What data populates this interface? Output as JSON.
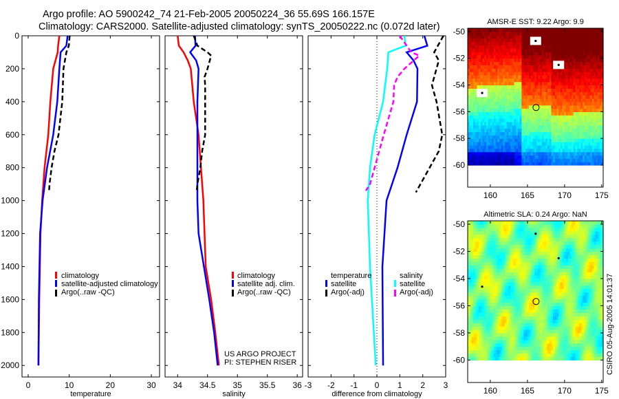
{
  "header": {
    "title_line1": "Argo profile: AO 5900242_74 21-Feb-2005 20050224_36 55.69S 166.157E",
    "title_line2": "Climatology: CARS2000. Satellite-adjusted climatology: synTS_20050222.nc (0.072d later)"
  },
  "colors": {
    "climatology": "#ff0000",
    "satellite": "#0000ff",
    "argo": "#000000",
    "salinity_satellite": "#00ffff",
    "salinity_argo": "#ff00ff"
  },
  "credit": {
    "line1": "US ARGO PROJECT",
    "line2": "PI: STEPHEN RISER"
  },
  "footer_stamp": "CSIRO 05-Aug-2005 14:01:37",
  "chart_data": [
    {
      "type": "line",
      "id": "temperature",
      "xlabel": "temperature",
      "ylabel": "",
      "xlim": [
        -1.5,
        32
      ],
      "ylim": [
        0,
        2070
      ],
      "y_reversed": true,
      "xticks": [
        0,
        10,
        20,
        30
      ],
      "yticks": [
        0,
        200,
        400,
        600,
        800,
        1000,
        1200,
        1400,
        1600,
        1800,
        2000
      ],
      "legend": [
        "climatology",
        "satellite-adjusted climatology",
        "Argo(..raw -QC)"
      ],
      "series": [
        {
          "name": "climatology",
          "color": "#ff0000",
          "dash": false,
          "points": [
            [
              0,
              7.6
            ],
            [
              60,
              7.3
            ],
            [
              100,
              7.2
            ],
            [
              200,
              6.1
            ],
            [
              400,
              5.4
            ],
            [
              600,
              4.9
            ],
            [
              800,
              4.0
            ],
            [
              1000,
              3.4
            ],
            [
              1200,
              3.0
            ],
            [
              1600,
              2.7
            ],
            [
              2000,
              2.5
            ]
          ]
        },
        {
          "name": "satellite-adjusted climatology",
          "color": "#0000ff",
          "dash": false,
          "points": [
            [
              0,
              9.6
            ],
            [
              60,
              9.3
            ],
            [
              100,
              7.9
            ],
            [
              200,
              7.6
            ],
            [
              400,
              7.1
            ],
            [
              600,
              6.1
            ],
            [
              800,
              4.6
            ],
            [
              1000,
              3.5
            ],
            [
              1200,
              2.9
            ],
            [
              1600,
              2.6
            ],
            [
              2000,
              2.5
            ]
          ]
        },
        {
          "name": "Argo(..raw -QC)",
          "color": "#000000",
          "dash": true,
          "points": [
            [
              0,
              10.1
            ],
            [
              60,
              9.9
            ],
            [
              100,
              9.3
            ],
            [
              200,
              8.6
            ],
            [
              400,
              8.3
            ],
            [
              600,
              7.4
            ],
            [
              700,
              6.4
            ],
            [
              800,
              5.7
            ],
            [
              900,
              5.2
            ],
            [
              940,
              5.1
            ]
          ]
        }
      ]
    },
    {
      "type": "line",
      "id": "salinity",
      "xlabel": "salinity",
      "xlim": [
        33.79,
        36.09
      ],
      "ylim": [
        0,
        2070
      ],
      "y_reversed": true,
      "xticks": [
        34,
        34.5,
        35,
        35.5,
        36
      ],
      "legend": [
        "climatology",
        "satellite adj. clim.",
        "Argo(..raw -QC)"
      ],
      "series": [
        {
          "name": "climatology",
          "color": "#ff0000",
          "dash": false,
          "points": [
            [
              0,
              34.0
            ],
            [
              60,
              34.02
            ],
            [
              100,
              34.1
            ],
            [
              150,
              34.17
            ],
            [
              200,
              34.22
            ],
            [
              400,
              34.27
            ],
            [
              600,
              34.35
            ],
            [
              800,
              34.39
            ],
            [
              1000,
              34.43
            ],
            [
              1200,
              34.45
            ],
            [
              1400,
              34.47
            ],
            [
              1600,
              34.56
            ],
            [
              1800,
              34.63
            ],
            [
              2000,
              34.69
            ]
          ]
        },
        {
          "name": "satellite adj. clim.",
          "color": "#0000ff",
          "dash": false,
          "points": [
            [
              0,
              34.29
            ],
            [
              60,
              34.3
            ],
            [
              100,
              34.21
            ],
            [
              150,
              34.31
            ],
            [
              200,
              34.35
            ],
            [
              400,
              34.33
            ],
            [
              600,
              34.33
            ],
            [
              800,
              34.33
            ],
            [
              1000,
              34.33
            ],
            [
              1200,
              34.35
            ],
            [
              1400,
              34.44
            ],
            [
              1600,
              34.53
            ],
            [
              1800,
              34.61
            ],
            [
              2000,
              34.67
            ]
          ]
        },
        {
          "name": "Argo(..raw -QC)",
          "color": "#000000",
          "dash": true,
          "points": [
            [
              0,
              34.27
            ],
            [
              60,
              34.33
            ],
            [
              100,
              34.5
            ],
            [
              120,
              34.56
            ],
            [
              200,
              34.5
            ],
            [
              250,
              34.45
            ],
            [
              300,
              34.46
            ],
            [
              400,
              34.46
            ],
            [
              600,
              34.46
            ],
            [
              700,
              34.41
            ],
            [
              800,
              34.38
            ],
            [
              900,
              34.33
            ],
            [
              940,
              34.32
            ]
          ]
        }
      ]
    },
    {
      "type": "line",
      "id": "difference",
      "xlabel": "difference from climatology",
      "xlim": [
        -3,
        3
      ],
      "ylim": [
        0,
        2070
      ],
      "y_reversed": true,
      "xticks": [
        -3,
        -2,
        -1,
        0,
        1,
        2,
        3
      ],
      "zero_line": true,
      "legend_temperature": {
        "title": "temperature",
        "items": [
          "satellite",
          "Argo(-adj)"
        ]
      },
      "legend_salinity": {
        "title": "salinity",
        "items": [
          "satellite",
          "Argo(-adj)"
        ]
      },
      "series": [
        {
          "name": "temperature satellite",
          "color": "#0000ff",
          "dash": false,
          "points": [
            [
              0,
              2.07
            ],
            [
              60,
              2.2
            ],
            [
              100,
              1.3
            ],
            [
              150,
              1.6
            ],
            [
              200,
              1.77
            ],
            [
              400,
              1.75
            ],
            [
              600,
              1.3
            ],
            [
              800,
              0.9
            ],
            [
              1000,
              0.42
            ],
            [
              1400,
              0.24
            ],
            [
              2000,
              0.27
            ]
          ]
        },
        {
          "name": "temperature Argo(-adj)",
          "color": "#000000",
          "dash": true,
          "points": [
            [
              0,
              2.9
            ],
            [
              100,
              2.5
            ],
            [
              150,
              2.7
            ],
            [
              300,
              2.4
            ],
            [
              400,
              2.6
            ],
            [
              600,
              2.85
            ],
            [
              700,
              2.7
            ],
            [
              800,
              2.3
            ],
            [
              900,
              1.9
            ],
            [
              950,
              1.7
            ]
          ]
        },
        {
          "name": "salinity satellite",
          "color": "#00ffff",
          "dash": false,
          "points": [
            [
              0,
              1.2
            ],
            [
              60,
              1.25
            ],
            [
              100,
              0.5
            ],
            [
              200,
              0.45
            ],
            [
              400,
              0.27
            ],
            [
              600,
              -0.1
            ],
            [
              800,
              -0.3
            ],
            [
              1000,
              -0.4
            ],
            [
              1400,
              -0.3
            ],
            [
              2000,
              -0.05
            ]
          ]
        },
        {
          "name": "salinity Argo(-adj)",
          "color": "#ff00ff",
          "dash": true,
          "points": [
            [
              0,
              1.0
            ],
            [
              100,
              1.5
            ],
            [
              120,
              1.85
            ],
            [
              200,
              1.2
            ],
            [
              250,
              0.9
            ],
            [
              300,
              0.75
            ],
            [
              400,
              0.72
            ],
            [
              600,
              0.3
            ],
            [
              800,
              -0.1
            ],
            [
              900,
              -0.3
            ],
            [
              940,
              -0.48
            ]
          ]
        }
      ]
    },
    {
      "type": "heatmap",
      "id": "sst_map",
      "title": "AMSR-E SST: 9.22 Argo: 9.9",
      "xlim": [
        156.95,
        175.2
      ],
      "ylim": [
        -61.65,
        -49.75
      ],
      "xticks": [
        160,
        165,
        170,
        175
      ],
      "yticks": [
        -50,
        -52,
        -54,
        -56,
        -58,
        -60
      ],
      "profile_location": [
        166.157,
        -55.69
      ],
      "land_marks": [
        [
          166.1,
          -50.7
        ],
        [
          169.2,
          -52.5
        ],
        [
          158.9,
          -54.6
        ]
      ]
    },
    {
      "type": "heatmap",
      "id": "sla_map",
      "title": "Altimetric SLA: 0.24 Argo: NaN",
      "xlim": [
        156.95,
        175.2
      ],
      "ylim": [
        -61.65,
        -49.75
      ],
      "xticks": [
        160,
        165,
        170,
        175
      ],
      "yticks": [
        -50,
        -52,
        -54,
        -56,
        -58,
        -60
      ],
      "profile_location": [
        166.157,
        -55.69
      ],
      "land_marks": [
        [
          166.1,
          -50.7
        ],
        [
          169.2,
          -52.5
        ],
        [
          158.9,
          -54.6
        ]
      ]
    }
  ]
}
